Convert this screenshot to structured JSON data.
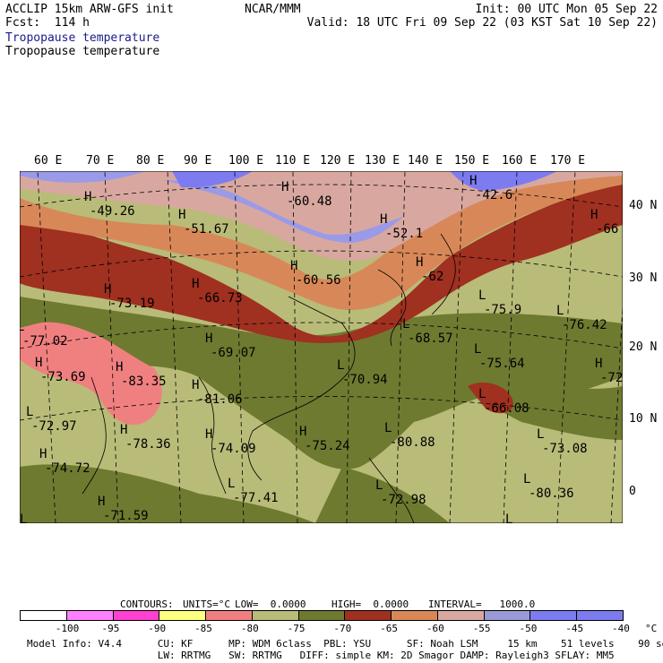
{
  "header": {
    "left_line1": "ACCLIP 15km ARW-GFS init",
    "left_line2": "Fcst:  114 h",
    "center": "NCAR/MMM",
    "right_line1": "Init: 00 UTC Mon 05 Sep 22",
    "right_line2": "Valid: 18 UTC Fri 09 Sep 22 (03 KST Sat 10 Sep 22)",
    "field_title_1": "Tropopause temperature",
    "field_title_2": "Tropopause temperature"
  },
  "map": {
    "lon_labels": [
      "60 E",
      "70 E",
      "80 E",
      "90 E",
      "100 E",
      "110 E",
      "120 E",
      "130 E",
      "140 E",
      "150 E",
      "160 E",
      "170 E"
    ],
    "lat_labels": [
      "40 N",
      "30 N",
      "20 N",
      "10 N",
      "0"
    ],
    "annotations": [
      {
        "text": "-49.26"
      },
      {
        "text": "-60.48"
      },
      {
        "text": "-42.6"
      },
      {
        "text": "-51.67"
      },
      {
        "text": "-52.1"
      },
      {
        "text": "-66"
      },
      {
        "text": "-62"
      },
      {
        "text": "-60.56"
      },
      {
        "text": "-73.19"
      },
      {
        "text": "-66.73"
      },
      {
        "text": "-75.9"
      },
      {
        "text": "-76.42"
      },
      {
        "text": "-68.57"
      },
      {
        "text": "-69.07"
      },
      {
        "text": "-77.02"
      },
      {
        "text": "-75.64"
      },
      {
        "text": "-72"
      },
      {
        "text": "-70.94"
      },
      {
        "text": "-83.35"
      },
      {
        "text": "-73.69"
      },
      {
        "text": "-81.06"
      },
      {
        "text": "-66.08"
      },
      {
        "text": "-72.97"
      },
      {
        "text": "-78.36"
      },
      {
        "text": "-74.09"
      },
      {
        "text": "-75.24"
      },
      {
        "text": "-80.88"
      },
      {
        "text": "-73.08"
      },
      {
        "text": "-74.72"
      },
      {
        "text": "-80.36"
      },
      {
        "text": "-77.41"
      },
      {
        "text": "-72.98"
      },
      {
        "text": "-76.69"
      },
      {
        "text": "-71.59"
      },
      {
        "text": "-82.8"
      }
    ],
    "marker_high": "H",
    "marker_low": "L",
    "colors": {
      "band_m40": "#7c7cf0",
      "band_m45": "#9a9ae8",
      "band_m55": "#d8a8a0",
      "band_m60": "#d88858",
      "band_m65": "#a03020",
      "band_m70": "#6e7a30",
      "band_m75": "#b8bc78",
      "band_m80": "#f08080"
    }
  },
  "contour_info": {
    "contours": "CONTOURS:",
    "units": "UNITS=°C",
    "low": "LOW=  0.0000",
    "high": "HIGH=  0.0000",
    "interval": "INTERVAL=   1000.0"
  },
  "colorbar": {
    "labels": [
      "-100",
      "-95",
      "-90",
      "-85",
      "-80",
      "-75",
      "-70",
      "-65",
      "-60",
      "-55",
      "-50",
      "-45",
      "-40",
      "°C"
    ],
    "colors": [
      "#ffffff",
      "#ff80ff",
      "#ff40d0",
      "#ffff80",
      "#f08080",
      "#b8bc78",
      "#6e7a30",
      "#a03020",
      "#d88858",
      "#d8a8a0",
      "#9a9ad8",
      "#7c7cf0",
      "#7c7cf0"
    ]
  },
  "footer": {
    "line1": "Model Info: V4.4      CU: KF      MP: WDM 6class  PBL: YSU      SF: Noah LSM     15 km    51 levels    90 sec",
    "line2": "                      LW: RRTMG   SW: RRTMG   DIFF: simple KM: 2D Smagor DAMP: Rayleigh3 SFLAY: MM5"
  }
}
